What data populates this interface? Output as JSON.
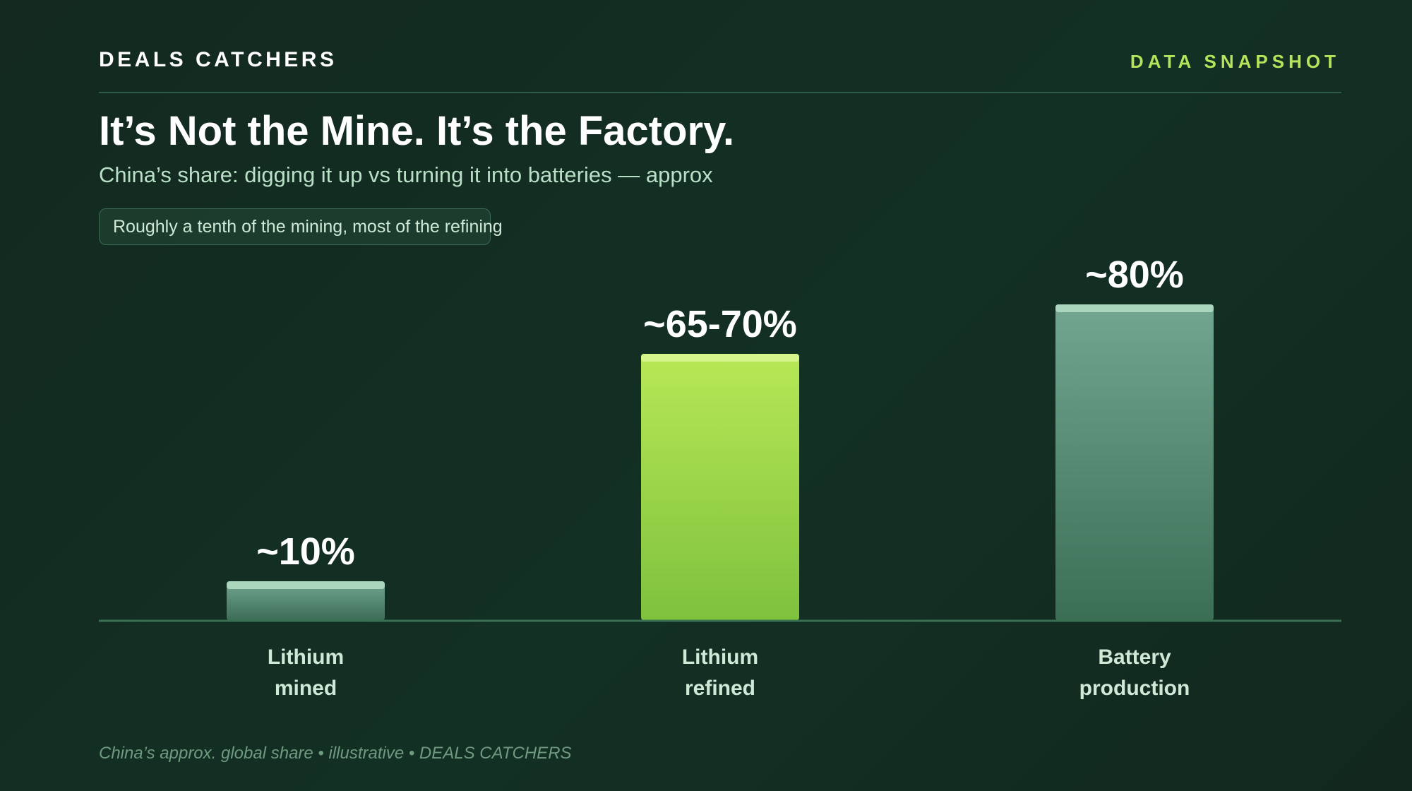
{
  "header": {
    "brand": "DEALS CATCHERS",
    "kicker": "DATA SNAPSHOT"
  },
  "title": "It’s Not the Mine. It’s the Factory.",
  "subtitle": "China’s share: digging it up vs turning it into batteries — approx",
  "callout": "Roughly a tenth of the mining, most of the refining",
  "footer": "China’s approx. global share • illustrative • DEALS CATCHERS",
  "colors": {
    "background": "#132d22",
    "accent": "#b5e35a",
    "highlight_bar": "#9ed445",
    "muted_bar": "#5e9a80"
  },
  "chart_data": {
    "type": "bar",
    "categories": [
      [
        "Lithium",
        "mined"
      ],
      [
        "Lithium",
        "refined"
      ],
      [
        "Battery",
        "production"
      ]
    ],
    "values": [
      10,
      67.5,
      80
    ],
    "value_labels": [
      "~10%",
      "~65-70%",
      "~80%"
    ],
    "highlight": [
      false,
      true,
      false
    ],
    "ylim": [
      0,
      100
    ],
    "grid": false,
    "legend": "none"
  }
}
